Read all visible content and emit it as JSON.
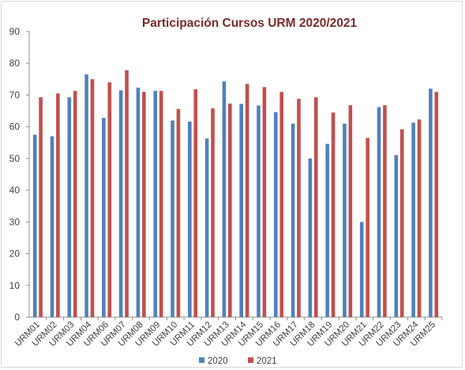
{
  "chart_data": {
    "type": "bar",
    "title": "Participación Cursos URM 2020/2021",
    "title_color": "#7b2a2a",
    "xlabel": "",
    "ylabel": "",
    "ylim": [
      0,
      90
    ],
    "yticks": [
      0,
      10,
      20,
      30,
      40,
      50,
      60,
      70,
      80,
      90
    ],
    "grid": false,
    "legend": "bottom-center",
    "categories": [
      "URM01",
      "URM02",
      "URM03",
      "URM04",
      "URM06",
      "URM07",
      "URM08",
      "URM09",
      "URM10",
      "URM11",
      "URM12",
      "URM13",
      "URM14",
      "URM15",
      "URM16",
      "URM17",
      "URM18",
      "URM19",
      "URM20",
      "URM21",
      "URM22",
      "URM23",
      "URM24",
      "URM25"
    ],
    "series": [
      {
        "name": "2020",
        "color": "#4f81bd",
        "values": [
          57.5,
          57,
          69.3,
          76.5,
          62.8,
          71.5,
          72.3,
          71.3,
          62,
          61.6,
          56.3,
          74.3,
          67.2,
          66.7,
          64.6,
          61,
          50,
          54.6,
          61,
          30,
          66.2,
          51.1,
          61.3,
          72
        ]
      },
      {
        "name": "2021",
        "color": "#c0504d",
        "values": [
          69.3,
          70.5,
          71.3,
          75,
          74,
          77.8,
          71,
          71.3,
          65.6,
          71.8,
          65.8,
          67.3,
          73.5,
          72.5,
          71,
          68.8,
          69.3,
          64.5,
          66.8,
          56.5,
          66.8,
          59.2,
          62.3,
          71
        ]
      }
    ]
  }
}
